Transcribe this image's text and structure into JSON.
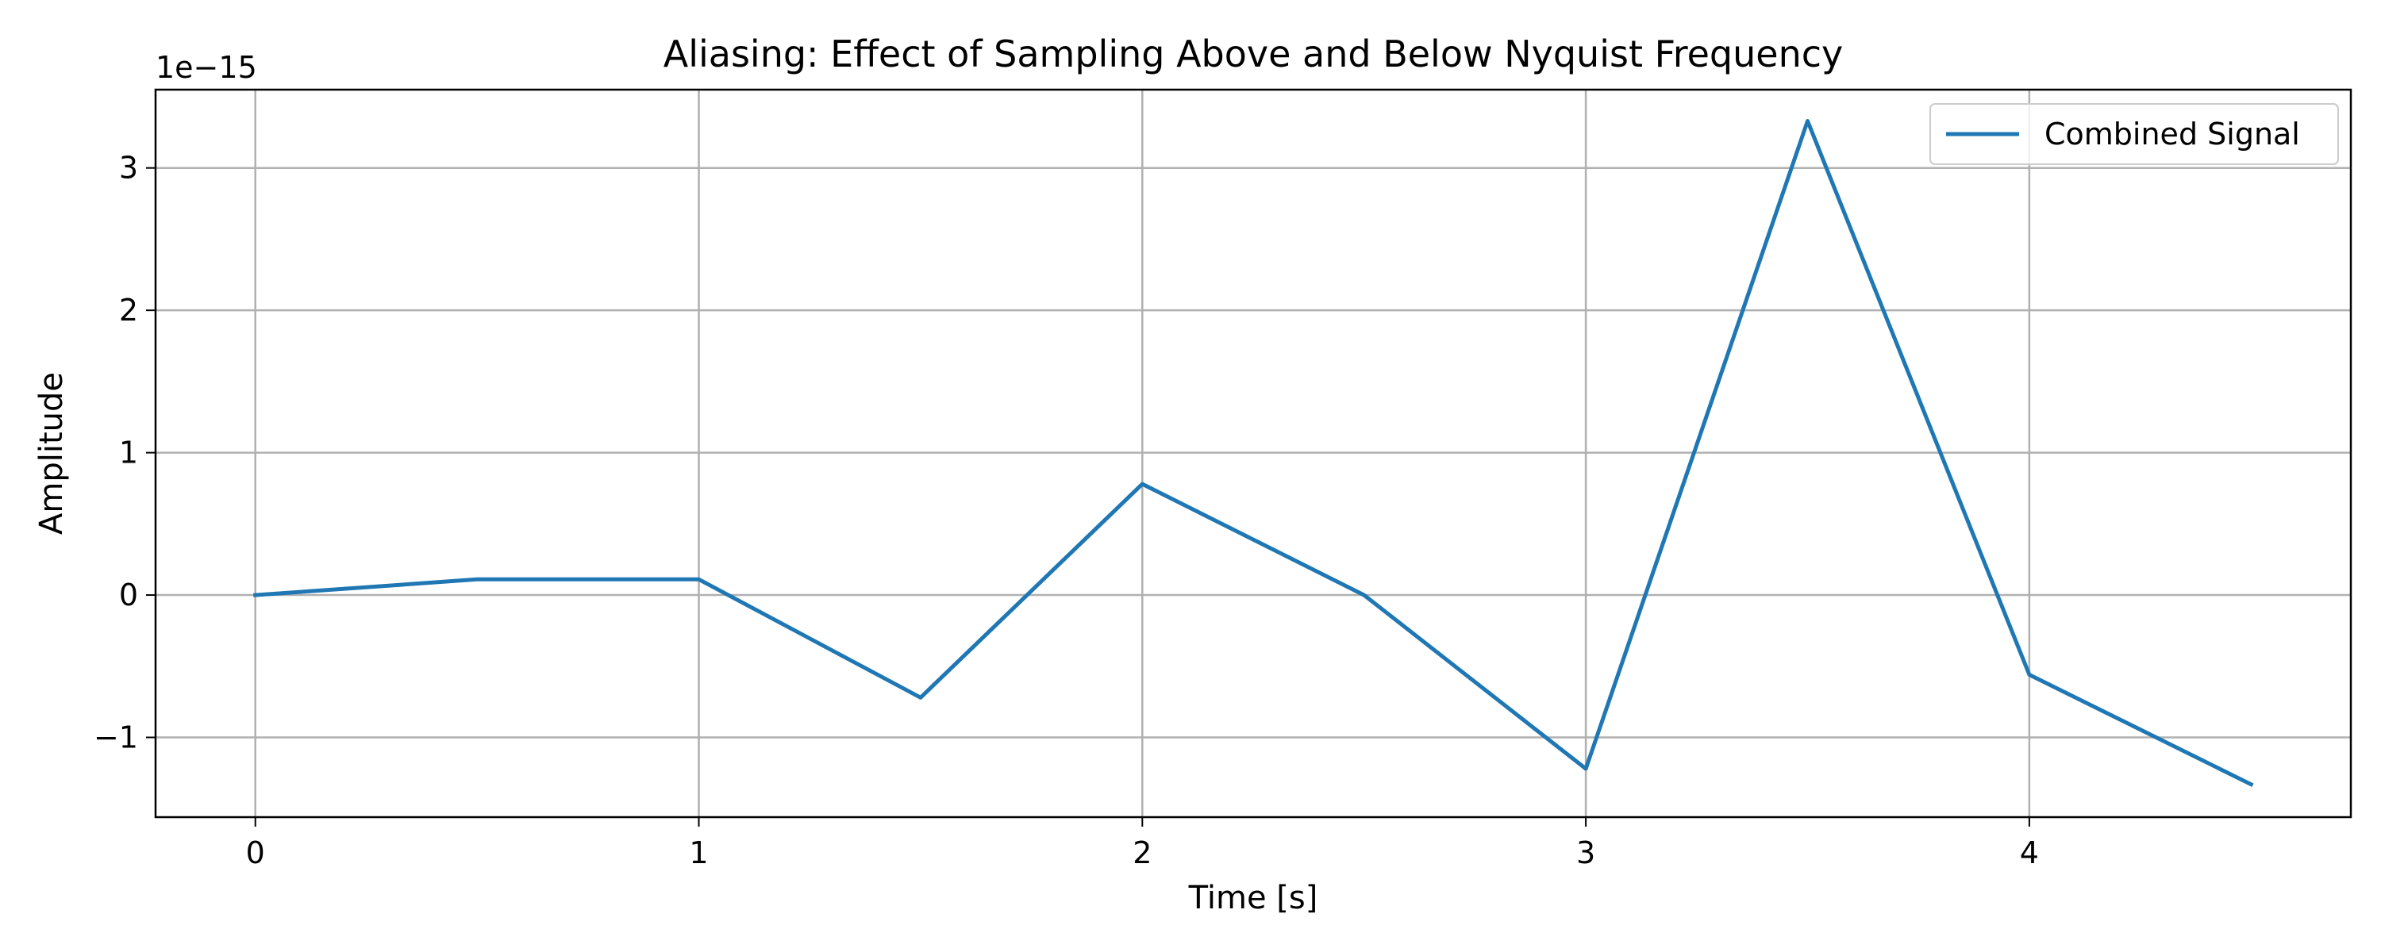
{
  "chart_data": {
    "type": "line",
    "title": "Aliasing: Effect of Sampling Above and Below Nyquist Frequency",
    "xlabel": "Time [s]",
    "ylabel": "Amplitude",
    "y_offset_label": "1e−15",
    "y_scale_factor": 1e-15,
    "xlim": [
      -0.225,
      4.725
    ],
    "ylim": [
      -1.56,
      3.55
    ],
    "x_ticks": [
      0,
      1,
      2,
      3,
      4
    ],
    "x_tick_labels": [
      "0",
      "1",
      "2",
      "3",
      "4"
    ],
    "y_ticks": [
      -1,
      0,
      1,
      2,
      3
    ],
    "y_tick_labels": [
      "−1",
      "0",
      "1",
      "2",
      "3"
    ],
    "grid": true,
    "legend_position": "top-right",
    "series": [
      {
        "name": "Combined Signal",
        "color": "#1f77b4",
        "x": [
          0,
          0.5,
          1.0,
          1.5,
          2.0,
          2.5,
          3.0,
          3.5,
          4.0,
          4.5
        ],
        "y": [
          0,
          0.11,
          0.11,
          -0.72,
          0.78,
          0,
          -1.22,
          3.33,
          -0.56,
          -1.33
        ]
      }
    ]
  }
}
